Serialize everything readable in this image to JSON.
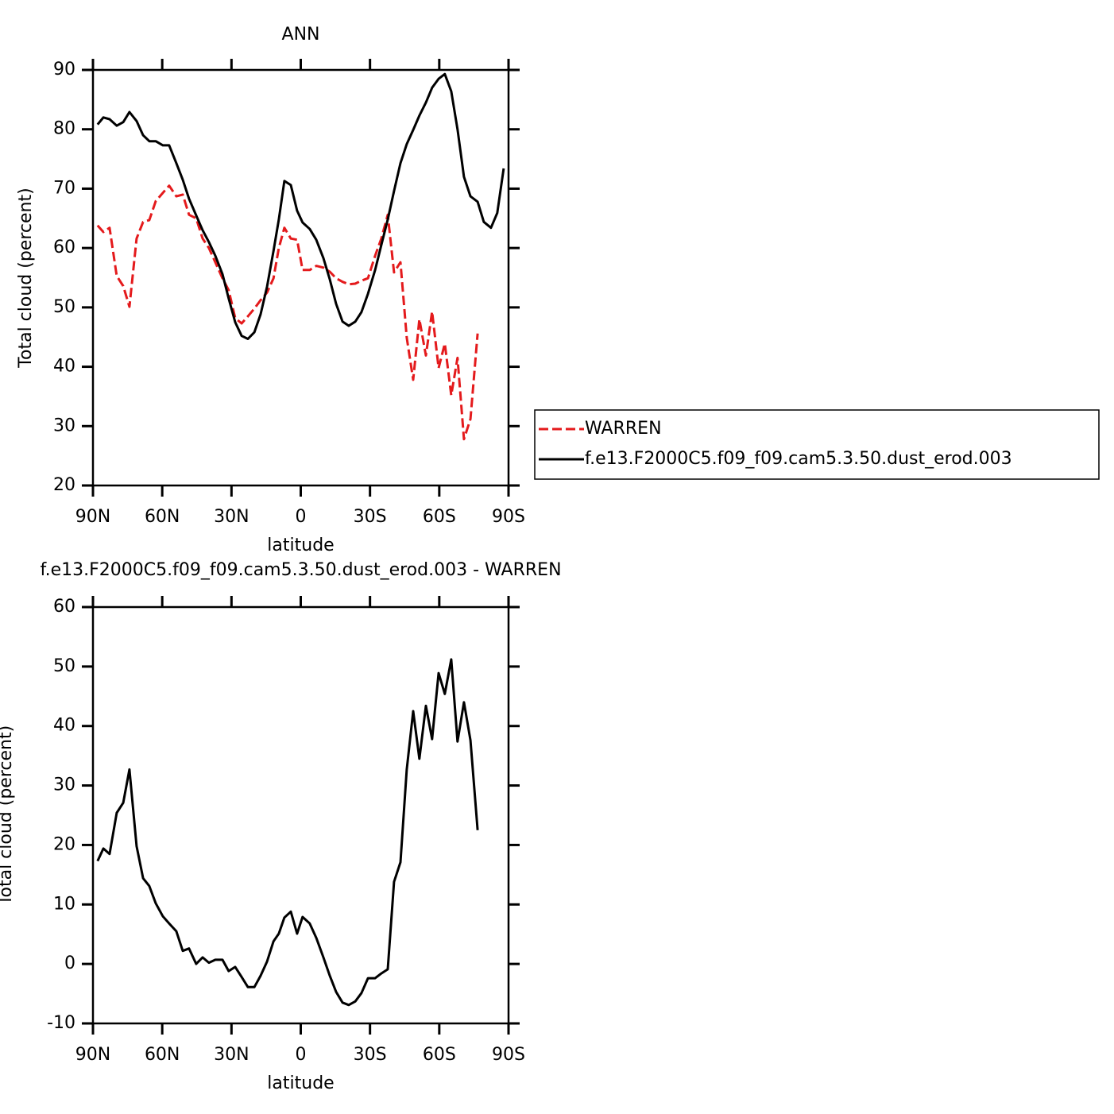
{
  "chart_data": [
    {
      "type": "line",
      "title": "ANN",
      "xlabel": "latitude",
      "ylabel": "Total cloud (percent)",
      "x": [
        88,
        85.5,
        82.8,
        79.7,
        76.9,
        74.2,
        71.1,
        68.3,
        65.6,
        62.8,
        59.7,
        57,
        53.9,
        51.1,
        48.4,
        45.3,
        42.5,
        39.8,
        37,
        33.9,
        31.2,
        28.4,
        25.6,
        22.9,
        20.1,
        17.4,
        14.6,
        11.8,
        9.5,
        7.1,
        4.3,
        1.6,
        -0.8,
        -3.9,
        -6.7,
        -9.8,
        -12.6,
        -15.3,
        -18.1,
        -20.8,
        -23.6,
        -26.3,
        -29.1,
        -32.2,
        -34.9,
        -37.7,
        -40.4,
        -43.2,
        -45.9,
        -48.7,
        -51.4,
        -54.2,
        -56.9,
        -59.7,
        -62.4,
        -65.2,
        -67.9,
        -70.7,
        -73.5,
        -76.6,
        -79.3,
        -82.4,
        -85.1,
        -87.9
      ],
      "series": [
        {
          "name": "WARREN",
          "color": "#e41a1c",
          "dash": true,
          "values": [
            63.8,
            62.7,
            63.4,
            55.3,
            53.6,
            50.1,
            61.6,
            64.4,
            64.7,
            67.9,
            69.3,
            70.5,
            68.7,
            69.0,
            65.6,
            65.0,
            61.6,
            60.0,
            57.6,
            54.9,
            52.9,
            48.2,
            47.3,
            48.5,
            49.8,
            51.2,
            52.5,
            54.9,
            60.0,
            63.4,
            61.6,
            61.4,
            56.3,
            56.3,
            57.0,
            56.7,
            56.0,
            54.9,
            54.3,
            53.9,
            54.0,
            54.5,
            54.9,
            58.7,
            61.6,
            65.6,
            55.9,
            57.6,
            44.9,
            37.8,
            48.0,
            41.9,
            49.3,
            39.8,
            43.9,
            35.2,
            41.5,
            27.8,
            31.2,
            45.6,
            null,
            null,
            null,
            null
          ]
        },
        {
          "name": "f.e13.F2000C5.f09_f09.cam5.3.50.dust_erod.003",
          "color": "#000000",
          "dash": false,
          "values": [
            80.8,
            82.0,
            81.7,
            80.6,
            81.2,
            82.9,
            81.4,
            79.0,
            78.0,
            78.0,
            77.3,
            77.3,
            74.3,
            71.5,
            68.3,
            65.5,
            63.0,
            61.0,
            58.7,
            55.6,
            51.5,
            47.5,
            45.2,
            44.7,
            45.8,
            48.8,
            53.5,
            59.5,
            64.8,
            71.3,
            70.6,
            66.3,
            64.3,
            63.2,
            61.4,
            58.3,
            54.7,
            50.6,
            47.6,
            46.9,
            47.6,
            49.2,
            52.3,
            56.3,
            60.5,
            64.8,
            69.6,
            74.3,
            77.5,
            79.9,
            82.3,
            84.5,
            87.0,
            88.5,
            89.3,
            86.4,
            80.0,
            72.0,
            68.7,
            67.8,
            64.4,
            63.4,
            65.9,
            73.4
          ]
        }
      ],
      "xlim": [
        90,
        -90
      ],
      "xticks": [
        {
          "value": 90,
          "label": "90N"
        },
        {
          "value": 60,
          "label": "60N"
        },
        {
          "value": 30,
          "label": "30N"
        },
        0,
        {
          "value": -30,
          "label": "30S"
        },
        {
          "value": -60,
          "label": "60S"
        },
        {
          "value": -90,
          "label": "90S"
        }
      ],
      "ylim": [
        20,
        90
      ],
      "yticks": [
        20,
        30,
        40,
        50,
        60,
        70,
        80,
        90
      ],
      "legend": "right"
    },
    {
      "type": "line",
      "title": "f.e13.F2000C5.f09_f09.cam5.3.50.dust_erod.003 - WARREN",
      "xlabel": "latitude",
      "ylabel": "Total cloud (percent)",
      "x": [
        88,
        85.5,
        82.8,
        79.7,
        76.9,
        74.2,
        71.1,
        68.3,
        65.6,
        62.8,
        59.7,
        57,
        53.9,
        51.1,
        48.4,
        45.3,
        42.5,
        39.8,
        37,
        33.9,
        31.2,
        28.4,
        25.6,
        22.9,
        20.1,
        17.4,
        14.6,
        11.8,
        9.5,
        7.1,
        4.3,
        1.6,
        -0.8,
        -3.9,
        -6.7,
        -9.8,
        -12.6,
        -15.3,
        -18.1,
        -20.8,
        -23.6,
        -26.3,
        -29.1,
        -32.2,
        -34.9,
        -37.7,
        -40.4,
        -43.2,
        -45.9,
        -48.7,
        -51.4,
        -54.2,
        -56.9,
        -59.7,
        -62.4,
        -65.2,
        -67.9,
        -70.7,
        -73.5,
        -76.6
      ],
      "series": [
        {
          "color": "#000000",
          "dash": false,
          "values": [
            17.3,
            19.4,
            18.5,
            25.4,
            27.1,
            32.7,
            19.8,
            14.4,
            13.1,
            10.2,
            8.0,
            6.8,
            5.5,
            2.2,
            2.6,
            0.0,
            1.1,
            0.2,
            0.7,
            0.7,
            -1.2,
            -0.5,
            -2.2,
            -3.9,
            -3.9,
            -2.0,
            0.4,
            3.8,
            5.1,
            7.8,
            8.8,
            5.1,
            7.9,
            6.8,
            4.4,
            1.1,
            -2.0,
            -4.7,
            -6.5,
            -6.9,
            -6.3,
            -4.9,
            -2.4,
            -2.4,
            -1.6,
            -0.9,
            13.8,
            17.1,
            32.7,
            42.5,
            34.5,
            43.4,
            37.8,
            48.9,
            45.4,
            51.2,
            37.4,
            44.0,
            37.6,
            22.5
          ]
        }
      ],
      "xlim": [
        90,
        -90
      ],
      "xticks": [
        {
          "value": 90,
          "label": "90N"
        },
        {
          "value": 60,
          "label": "60N"
        },
        {
          "value": 30,
          "label": "30N"
        },
        0,
        {
          "value": -30,
          "label": "30S"
        },
        {
          "value": -60,
          "label": "60S"
        },
        {
          "value": -90,
          "label": "90S"
        }
      ],
      "ylim": [
        -10,
        60
      ],
      "yticks": [
        -10,
        0,
        10,
        20,
        30,
        40,
        50,
        60
      ]
    }
  ]
}
